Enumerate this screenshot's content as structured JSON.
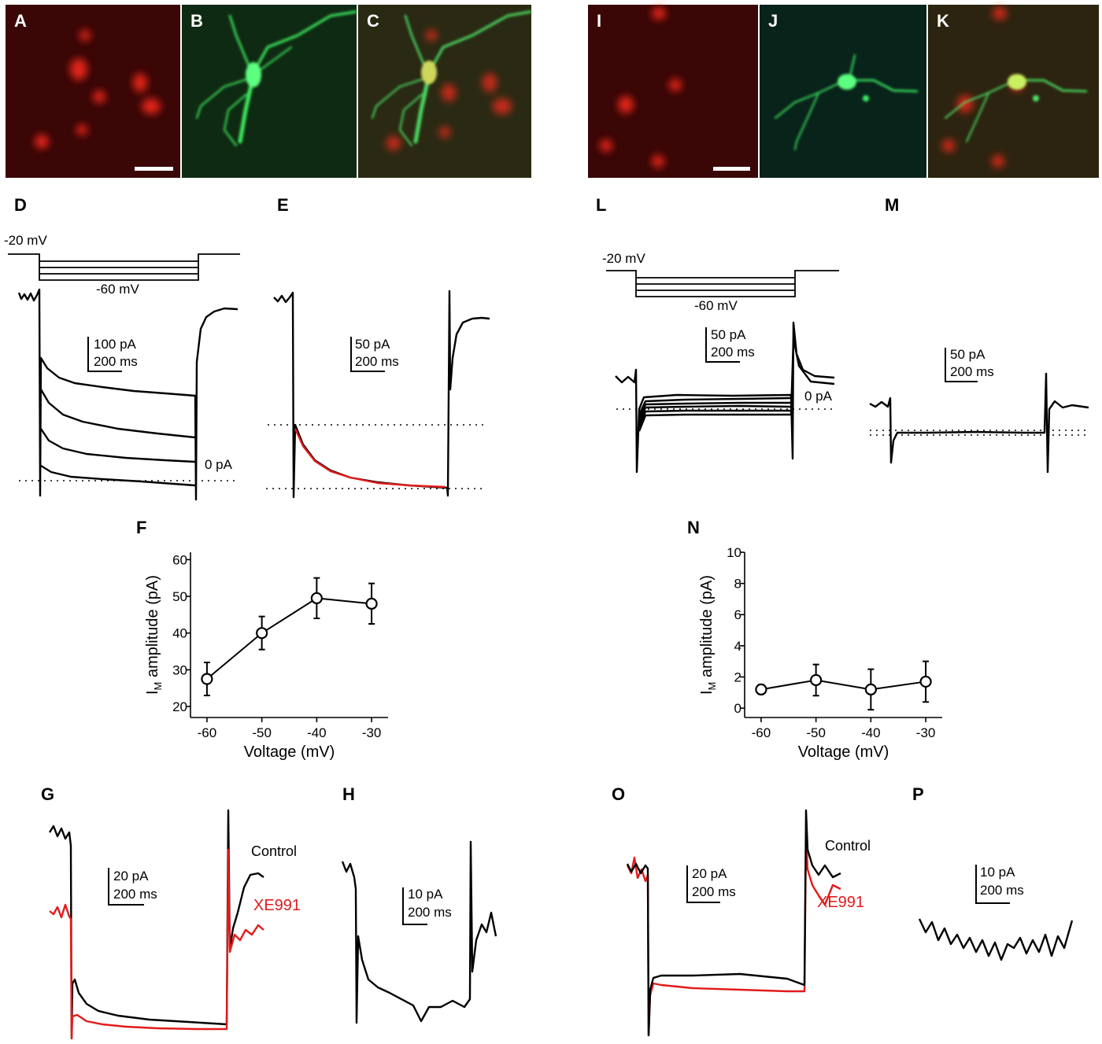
{
  "panels": {
    "A": "A",
    "B": "B",
    "C": "C",
    "D": "D",
    "E": "E",
    "F": "F",
    "G": "G",
    "H": "H",
    "I": "I",
    "J": "J",
    "K": "K",
    "L": "L",
    "M": "M",
    "N": "N",
    "O": "O",
    "P": "P"
  },
  "colors": {
    "red_channel": "#3a0606",
    "green_channel": "#0f2a12",
    "merge": "#2a2a14",
    "trace": "#000000",
    "xe991": "#e21b1b",
    "fit": "#e21b1b"
  },
  "labels": {
    "D": {
      "hold": "-20 mV",
      "step": "-60 mV",
      "sb_y": "100 pA",
      "sb_x": "200 ms",
      "zero": "0 pA"
    },
    "E": {
      "sb_y": "50 pA",
      "sb_x": "200 ms"
    },
    "L": {
      "hold": "-20 mV",
      "step": "-60 mV",
      "sb_y": "50 pA",
      "sb_x": "200 ms",
      "zero": "0 pA"
    },
    "M": {
      "sb_y": "50 pA",
      "sb_x": "200 ms"
    },
    "G": {
      "sb_y": "20 pA",
      "sb_x": "200 ms",
      "control": "Control",
      "xe": "XE991"
    },
    "H": {
      "sb_y": "10 pA",
      "sb_x": "200 ms"
    },
    "O": {
      "sb_y": "20 pA",
      "sb_x": "200 ms",
      "control": "Control",
      "xe": "XE991"
    },
    "P": {
      "sb_y": "10 pA",
      "sb_x": "200 ms"
    }
  },
  "chart_data": [
    {
      "panel": "F",
      "type": "scatter",
      "xlabel": "Voltage (mV)",
      "ylabel_main": "I",
      "ylabel_sub": "M",
      "ylabel_rest": " amplitude (pA)",
      "x": [
        -60,
        -50,
        -40,
        -30
      ],
      "y": [
        27.5,
        40,
        49.5,
        48
      ],
      "err": [
        4.5,
        4.5,
        5.5,
        5.5
      ],
      "xlim": [
        -63,
        -27
      ],
      "ylim": [
        17,
        62
      ],
      "xticks": [
        -60,
        -50,
        -40,
        -30
      ],
      "xtick_labels": [
        "-60",
        "-50",
        "-40",
        "-30"
      ],
      "yticks": [
        20,
        30,
        40,
        50,
        60
      ],
      "ytick_labels": [
        "20",
        "30",
        "40",
        "50",
        "60"
      ]
    },
    {
      "panel": "N",
      "type": "scatter",
      "xlabel": "Voltage (mV)",
      "ylabel_main": "I",
      "ylabel_sub": "M",
      "ylabel_rest": " amplitude (pA)",
      "x": [
        -60,
        -50,
        -40,
        -30
      ],
      "y": [
        1.2,
        1.8,
        1.2,
        1.7
      ],
      "err": [
        0.3,
        1.0,
        1.3,
        1.3
      ],
      "xlim": [
        -63,
        -27
      ],
      "ylim": [
        -0.6,
        10
      ],
      "xticks": [
        -60,
        -50,
        -40,
        -30
      ],
      "xtick_labels": [
        "-60",
        "-50",
        "-40",
        "-30"
      ],
      "yticks": [
        0,
        2,
        4,
        6,
        8,
        10
      ],
      "ytick_labels": [
        "0",
        "2",
        "4",
        "6",
        "8",
        "10"
      ]
    }
  ]
}
